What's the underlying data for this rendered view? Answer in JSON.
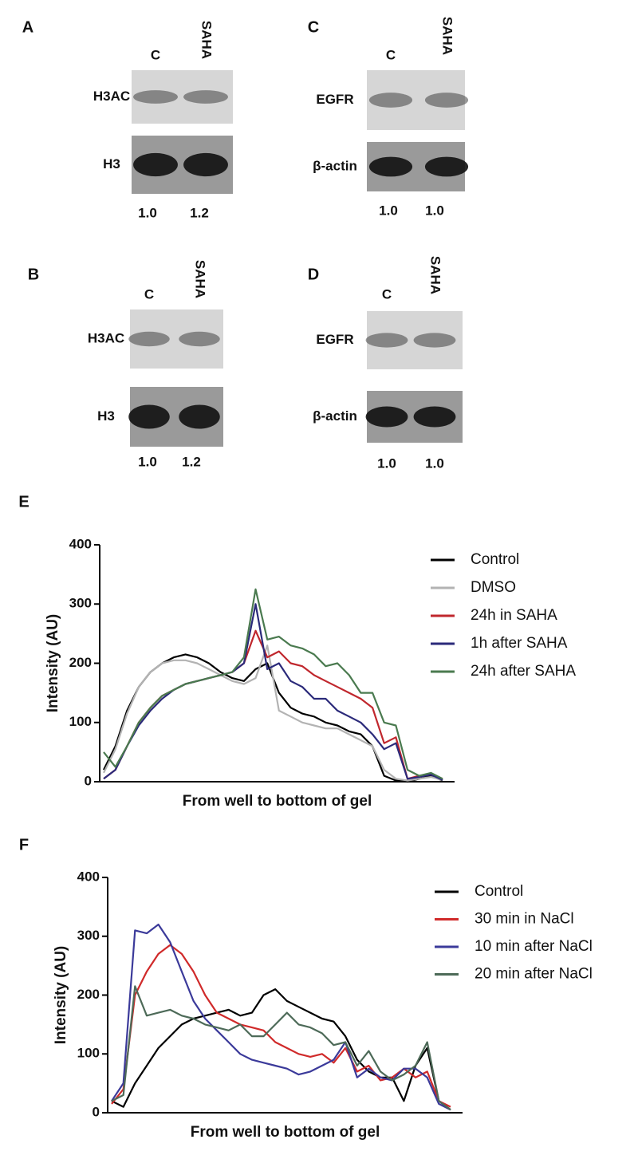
{
  "panels": [
    {
      "label": "A",
      "lanes": [
        "C",
        "SAHA"
      ],
      "rows": [
        "H3AC",
        "H3"
      ],
      "ratios": [
        "1.0",
        "1.2"
      ]
    },
    {
      "label": "C",
      "lanes": [
        "C",
        "SAHA"
      ],
      "rows": [
        "EGFR",
        "β-actin"
      ],
      "ratios": [
        "1.0",
        "1.0"
      ]
    },
    {
      "label": "B",
      "lanes": [
        "C",
        "SAHA"
      ],
      "rows": [
        "H3AC",
        "H3"
      ],
      "ratios": [
        "1.0",
        "1.2"
      ]
    },
    {
      "label": "D",
      "lanes": [
        "C",
        "SAHA"
      ],
      "rows": [
        "EGFR",
        "β-actin"
      ],
      "ratios": [
        "1.0",
        "1.0"
      ]
    }
  ],
  "chart_data": [
    {
      "type": "line",
      "label": "E",
      "ylabel": "Intensity (AU)",
      "xlabel": "From well to bottom of gel",
      "ylim": [
        0,
        400
      ],
      "yticks": [
        0,
        100,
        200,
        300,
        400
      ],
      "series": [
        {
          "name": "Control",
          "color": "#000000",
          "values": [
            20,
            60,
            120,
            160,
            185,
            200,
            210,
            215,
            210,
            200,
            185,
            175,
            170,
            190,
            200,
            150,
            125,
            115,
            110,
            100,
            95,
            85,
            80,
            60,
            10,
            2,
            0,
            5,
            10,
            2
          ]
        },
        {
          "name": "DMSO",
          "color": "#b3b3b3",
          "values": [
            15,
            55,
            115,
            160,
            185,
            200,
            205,
            205,
            200,
            190,
            180,
            170,
            165,
            175,
            230,
            120,
            110,
            100,
            95,
            90,
            90,
            80,
            70,
            60,
            20,
            5,
            2,
            5,
            8,
            3
          ]
        },
        {
          "name": "24h in SAHA",
          "color": "#c0272d",
          "values": [
            5,
            20,
            60,
            100,
            125,
            145,
            155,
            165,
            170,
            175,
            180,
            185,
            200,
            255,
            210,
            220,
            200,
            195,
            180,
            170,
            160,
            150,
            140,
            125,
            65,
            75,
            5,
            10,
            12,
            5
          ]
        },
        {
          "name": "1h after SAHA",
          "color": "#2b2a7a",
          "values": [
            5,
            20,
            60,
            95,
            120,
            140,
            155,
            165,
            170,
            175,
            180,
            185,
            200,
            300,
            190,
            200,
            170,
            160,
            140,
            140,
            120,
            110,
            100,
            80,
            55,
            65,
            5,
            8,
            12,
            3
          ]
        },
        {
          "name": "24h after SAHA",
          "color": "#4a7a4f",
          "values": [
            50,
            25,
            60,
            100,
            125,
            145,
            155,
            165,
            170,
            175,
            180,
            185,
            210,
            325,
            240,
            245,
            230,
            225,
            215,
            195,
            200,
            180,
            150,
            150,
            100,
            95,
            20,
            10,
            15,
            5
          ]
        }
      ]
    },
    {
      "type": "line",
      "label": "F",
      "ylabel": "Intensity (AU)",
      "xlabel": "From well to bottom of gel",
      "ylim": [
        0,
        400
      ],
      "yticks": [
        0,
        100,
        200,
        300,
        400
      ],
      "series": [
        {
          "name": "Control",
          "color": "#000000",
          "values": [
            20,
            10,
            50,
            80,
            110,
            130,
            150,
            160,
            165,
            170,
            175,
            165,
            170,
            200,
            210,
            190,
            180,
            170,
            160,
            155,
            130,
            90,
            70,
            60,
            60,
            20,
            80,
            110,
            20,
            5
          ]
        },
        {
          "name": "30 min in NaCl",
          "color": "#d02a2a",
          "values": [
            15,
            40,
            200,
            240,
            270,
            285,
            270,
            240,
            200,
            170,
            160,
            150,
            145,
            140,
            120,
            110,
            100,
            95,
            100,
            85,
            110,
            70,
            80,
            55,
            60,
            75,
            60,
            70,
            20,
            10
          ]
        },
        {
          "name": "10 min after NaCl",
          "color": "#3b3a9a",
          "values": [
            20,
            50,
            310,
            305,
            320,
            290,
            240,
            190,
            160,
            140,
            120,
            100,
            90,
            85,
            80,
            75,
            65,
            70,
            80,
            90,
            120,
            60,
            75,
            60,
            55,
            75,
            75,
            60,
            15,
            5
          ]
        },
        {
          "name": "20 min after NaCl",
          "color": "#4d6a58",
          "values": [
            20,
            30,
            215,
            165,
            170,
            175,
            165,
            160,
            150,
            145,
            140,
            150,
            130,
            130,
            150,
            170,
            150,
            145,
            135,
            115,
            120,
            80,
            105,
            70,
            55,
            65,
            80,
            120,
            20,
            5
          ]
        }
      ]
    }
  ]
}
